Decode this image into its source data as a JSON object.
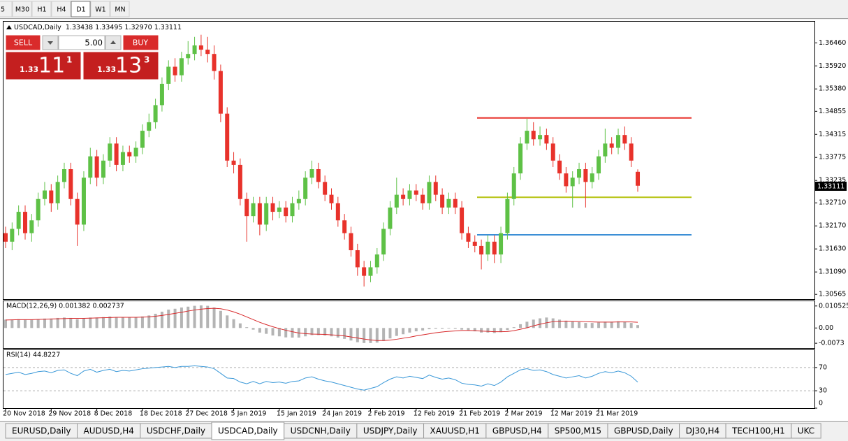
{
  "toolbar": {
    "timeframes": [
      "5",
      "M30",
      "H1",
      "H4",
      "D1",
      "W1",
      "MN"
    ],
    "active": "D1"
  },
  "trade_panel": {
    "sell": "SELL",
    "buy": "BUY",
    "lots": "5.00",
    "bid": {
      "big": "1.33",
      "pips": "11",
      "point": "1"
    },
    "ask": {
      "big": "1.33",
      "pips": "13",
      "point": "3"
    }
  },
  "tabs": {
    "items": [
      "EURUSD,Daily",
      "AUDUSD,H4",
      "USDCHF,Daily",
      "USDCAD,Daily",
      "USDCNH,Daily",
      "USDJPY,Daily",
      "XAUUSD,H1",
      "GBPUSD,H4",
      "SP500,M15",
      "GBPUSD,Daily",
      "DJ30,H4",
      "TECH100,H1",
      "UKC"
    ],
    "active": "USDCAD,Daily"
  },
  "chart_data": [
    {
      "type": "candlestick",
      "title": "USDCAD,Daily",
      "quote": "1.33438 1.33495 1.32970 1.33111",
      "up_color": "#5ec146",
      "down_color": "#e8322b",
      "categories": [
        "20 Nov 2018",
        null,
        null,
        null,
        null,
        null,
        null,
        "29 Nov 2018",
        null,
        null,
        null,
        null,
        null,
        null,
        "8 Dec 2018",
        null,
        null,
        null,
        null,
        null,
        null,
        "18 Dec 2018",
        null,
        null,
        null,
        null,
        null,
        null,
        "27 Dec 2018",
        null,
        null,
        null,
        null,
        null,
        null,
        "5 Jan 2019",
        null,
        null,
        null,
        null,
        null,
        null,
        "15 Jan 2019",
        null,
        null,
        null,
        null,
        null,
        null,
        "24 Jan 2019",
        null,
        null,
        null,
        null,
        null,
        null,
        "2 Feb 2019",
        null,
        null,
        null,
        null,
        null,
        null,
        "12 Feb 2019",
        null,
        null,
        null,
        null,
        null,
        null,
        "21 Feb 2019",
        null,
        null,
        null,
        null,
        null,
        null,
        "2 Mar 2019",
        null,
        null,
        null,
        null,
        null,
        null,
        "12 Mar 2019",
        null,
        null,
        null,
        null,
        null,
        null,
        "21 Mar 2019",
        null,
        null,
        null,
        null,
        null,
        null
      ],
      "open": [
        1.32,
        1.318,
        1.321,
        1.325,
        1.32,
        1.323,
        1.328,
        1.33,
        1.327,
        1.332,
        1.335,
        1.328,
        1.322,
        1.333,
        1.338,
        1.333,
        1.337,
        1.341,
        1.336,
        1.339,
        1.338,
        1.34,
        1.344,
        1.346,
        1.35,
        1.355,
        1.359,
        1.357,
        1.361,
        1.362,
        1.364,
        1.363,
        1.362,
        1.358,
        1.348,
        1.337,
        1.336,
        1.328,
        1.324,
        1.327,
        1.322,
        1.327,
        1.325,
        1.326,
        1.324,
        1.327,
        1.328,
        1.333,
        1.335,
        1.332,
        1.329,
        1.327,
        1.323,
        1.32,
        1.316,
        1.312,
        1.31,
        1.312,
        1.315,
        1.321,
        1.326,
        1.329,
        1.328,
        1.33,
        1.329,
        1.327,
        1.332,
        1.329,
        1.326,
        1.328,
        1.326,
        1.32,
        1.318,
        1.317,
        1.315,
        1.318,
        1.315,
        1.32,
        1.328,
        1.334,
        1.341,
        1.344,
        1.342,
        1.343,
        1.341,
        1.337,
        1.334,
        1.331,
        1.333,
        1.335,
        1.332,
        1.334,
        1.338,
        1.341,
        1.34,
        1.343,
        1.341,
        1.33438
      ],
      "high": [
        1.3215,
        1.3225,
        1.3265,
        1.3265,
        1.3245,
        1.3295,
        1.332,
        1.3315,
        1.3335,
        1.3365,
        1.3365,
        1.3295,
        1.3345,
        1.34,
        1.3395,
        1.3385,
        1.3425,
        1.3425,
        1.3405,
        1.3405,
        1.3415,
        1.3455,
        1.348,
        1.3515,
        1.3565,
        1.3605,
        1.361,
        1.3625,
        1.365,
        1.366,
        1.3665,
        1.366,
        1.364,
        1.3595,
        1.3495,
        1.339,
        1.3375,
        1.3295,
        1.3285,
        1.3285,
        1.3285,
        1.3285,
        1.3275,
        1.3275,
        1.3285,
        1.33,
        1.3345,
        1.337,
        1.3365,
        1.3335,
        1.3305,
        1.3285,
        1.3245,
        1.3215,
        1.3175,
        1.3135,
        1.3135,
        1.3165,
        1.3225,
        1.3275,
        1.333,
        1.3305,
        1.3315,
        1.3315,
        1.3305,
        1.3335,
        1.3335,
        1.3305,
        1.3295,
        1.3295,
        1.3275,
        1.3215,
        1.3195,
        1.3185,
        1.3195,
        1.3195,
        1.3215,
        1.3295,
        1.3355,
        1.3425,
        1.3468,
        1.346,
        1.345,
        1.3445,
        1.3425,
        1.3385,
        1.3355,
        1.3345,
        1.3365,
        1.3365,
        1.3355,
        1.3395,
        1.3445,
        1.3425,
        1.3445,
        1.345,
        1.3425,
        1.33495
      ],
      "low": [
        1.3165,
        1.316,
        1.3195,
        1.3185,
        1.318,
        1.3215,
        1.3265,
        1.325,
        1.3255,
        1.3305,
        1.3265,
        1.317,
        1.3205,
        1.3315,
        1.331,
        1.3315,
        1.3355,
        1.3345,
        1.3345,
        1.3365,
        1.3365,
        1.3385,
        1.3425,
        1.3445,
        1.3485,
        1.3535,
        1.3555,
        1.3555,
        1.3595,
        1.3605,
        1.3615,
        1.36,
        1.356,
        1.346,
        1.3355,
        1.334,
        1.3265,
        1.318,
        1.3225,
        1.3195,
        1.3205,
        1.323,
        1.3235,
        1.3225,
        1.3225,
        1.3255,
        1.3265,
        1.3315,
        1.3305,
        1.3275,
        1.3255,
        1.3215,
        1.3185,
        1.3145,
        1.31,
        1.3075,
        1.3085,
        1.3105,
        1.3135,
        1.3195,
        1.3245,
        1.3265,
        1.3265,
        1.3275,
        1.3255,
        1.3255,
        1.3275,
        1.3245,
        1.3245,
        1.3245,
        1.3185,
        1.3165,
        1.3155,
        1.3115,
        1.3135,
        1.313,
        1.313,
        1.3185,
        1.3265,
        1.3325,
        1.3395,
        1.3405,
        1.3405,
        1.3395,
        1.3355,
        1.3325,
        1.3295,
        1.326,
        1.3315,
        1.326,
        1.3305,
        1.3325,
        1.3365,
        1.3385,
        1.3385,
        1.3395,
        1.3355,
        1.3297
      ],
      "close": [
        1.318,
        1.321,
        1.325,
        1.32,
        1.323,
        1.328,
        1.33,
        1.327,
        1.332,
        1.335,
        1.328,
        1.322,
        1.333,
        1.338,
        1.333,
        1.337,
        1.341,
        1.336,
        1.339,
        1.338,
        1.34,
        1.344,
        1.346,
        1.35,
        1.355,
        1.359,
        1.357,
        1.361,
        1.362,
        1.364,
        1.363,
        1.362,
        1.358,
        1.348,
        1.337,
        1.336,
        1.328,
        1.324,
        1.327,
        1.322,
        1.327,
        1.325,
        1.326,
        1.324,
        1.327,
        1.328,
        1.333,
        1.335,
        1.332,
        1.329,
        1.327,
        1.323,
        1.32,
        1.316,
        1.312,
        1.31,
        1.312,
        1.315,
        1.321,
        1.326,
        1.329,
        1.328,
        1.33,
        1.329,
        1.327,
        1.332,
        1.329,
        1.326,
        1.328,
        1.326,
        1.32,
        1.318,
        1.317,
        1.315,
        1.318,
        1.315,
        1.32,
        1.328,
        1.334,
        1.341,
        1.344,
        1.342,
        1.343,
        1.341,
        1.337,
        1.334,
        1.331,
        1.333,
        1.335,
        1.332,
        1.334,
        1.338,
        1.341,
        1.34,
        1.343,
        1.341,
        1.337,
        1.33111
      ],
      "ylim": [
        1.3047,
        1.3694
      ],
      "yticks": [
        {
          "value": 1.3646,
          "label": "1.36460"
        },
        {
          "value": 1.3592,
          "label": "1.35920"
        },
        {
          "value": 1.3538,
          "label": "1.35380"
        },
        {
          "value": 1.34855,
          "label": "1.34855"
        },
        {
          "value": 1.34315,
          "label": "1.34315"
        },
        {
          "value": 1.33775,
          "label": "1.33775"
        },
        {
          "value": 1.33235,
          "label": "1.33235"
        },
        {
          "value": 1.3271,
          "label": "1.32710"
        },
        {
          "value": 1.3217,
          "label": "1.32170"
        },
        {
          "value": 1.3163,
          "label": "1.31630"
        },
        {
          "value": 1.3109,
          "label": "1.31090"
        },
        {
          "value": 1.30565,
          "label": "1.30565"
        }
      ],
      "levels": [
        {
          "value": 1.347,
          "color": "#e8322b"
        },
        {
          "value": 1.3284,
          "color": "#b5c20f"
        },
        {
          "value": 1.3196,
          "color": "#3c8fd6"
        }
      ]
    },
    {
      "type": "macd",
      "title": "MACD(12,26,9) 0.001382 0.002737",
      "ylim": [
        -0.0096,
        0.0128
      ],
      "yticks": [
        0.010525,
        {
          "value": 0,
          "label": "0.00"
        },
        -0.0073
      ],
      "series": [
        {
          "kind": "bar",
          "color": "#b4b4b4",
          "values": [
            0.004,
            0.004,
            0.0042,
            0.004,
            0.004,
            0.0042,
            0.0045,
            0.0045,
            0.0048,
            0.005,
            0.0048,
            0.0042,
            0.0045,
            0.005,
            0.005,
            0.0052,
            0.0055,
            0.0052,
            0.0052,
            0.005,
            0.005,
            0.0055,
            0.006,
            0.0068,
            0.0078,
            0.0088,
            0.0092,
            0.0098,
            0.0102,
            0.0106,
            0.0108,
            0.0106,
            0.0098,
            0.0082,
            0.006,
            0.0042,
            0.0022,
            0.0004,
            -0.0008,
            -0.0022,
            -0.0028,
            -0.0036,
            -0.004,
            -0.0045,
            -0.0046,
            -0.0046,
            -0.004,
            -0.0034,
            -0.0034,
            -0.0036,
            -0.004,
            -0.0046,
            -0.0052,
            -0.006,
            -0.0068,
            -0.0072,
            -0.0072,
            -0.007,
            -0.0062,
            -0.005,
            -0.0038,
            -0.003,
            -0.0022,
            -0.0016,
            -0.0012,
            -0.0006,
            -0.0004,
            -0.0004,
            -0.0003,
            -0.0004,
            -0.0008,
            -0.0012,
            -0.0016,
            -0.0022,
            -0.0022,
            -0.0024,
            -0.002,
            -0.001,
            0.0004,
            0.0018,
            0.003,
            0.004,
            0.0046,
            0.005,
            0.0046,
            0.004,
            0.0034,
            0.003,
            0.0028,
            0.0024,
            0.0024,
            0.0026,
            0.003,
            0.003,
            0.0032,
            0.003,
            0.0024,
            0.001382
          ]
        },
        {
          "kind": "line",
          "color": "#d8282a",
          "values": [
            0.0038,
            0.0039,
            0.004,
            0.004,
            0.004,
            0.0041,
            0.0042,
            0.0043,
            0.0044,
            0.0045,
            0.0046,
            0.0046,
            0.0046,
            0.0047,
            0.0048,
            0.0049,
            0.005,
            0.0051,
            0.0051,
            0.0051,
            0.0051,
            0.0052,
            0.0053,
            0.0056,
            0.006,
            0.0065,
            0.007,
            0.0075,
            0.0081,
            0.0086,
            0.009,
            0.0093,
            0.0094,
            0.0092,
            0.0086,
            0.0077,
            0.0066,
            0.0053,
            0.004,
            0.0027,
            0.0016,
            0.0006,
            -0.0003,
            -0.0011,
            -0.0018,
            -0.0024,
            -0.0027,
            -0.0029,
            -0.003,
            -0.0031,
            -0.0033,
            -0.0035,
            -0.0038,
            -0.0043,
            -0.0048,
            -0.0053,
            -0.0057,
            -0.006,
            -0.006,
            -0.0058,
            -0.0054,
            -0.0049,
            -0.0044,
            -0.0038,
            -0.0033,
            -0.0028,
            -0.0023,
            -0.0019,
            -0.0016,
            -0.0014,
            -0.0012,
            -0.0012,
            -0.0013,
            -0.0015,
            -0.0016,
            -0.0018,
            -0.0018,
            -0.0017,
            -0.0013,
            -0.0006,
            0.0001,
            0.001,
            0.0018,
            0.0025,
            0.003,
            0.0032,
            0.0033,
            0.0032,
            0.0031,
            0.003,
            0.0029,
            0.0028,
            0.0028,
            0.0028,
            0.0029,
            0.0029,
            0.0029,
            0.002737
          ]
        }
      ]
    },
    {
      "type": "line",
      "title": "RSI(14) 44.8227",
      "color": "#3a98d8",
      "ylim": [
        0,
        100
      ],
      "yticks": [
        70,
        30,
        0
      ],
      "grid": true,
      "values": [
        58,
        60,
        62,
        58,
        60,
        63,
        64,
        61,
        65,
        66,
        60,
        56,
        64,
        67,
        62,
        65,
        67,
        63,
        65,
        64,
        66,
        68,
        69,
        70,
        71,
        72,
        70,
        72,
        72,
        73,
        72,
        71,
        68,
        60,
        52,
        51,
        45,
        42,
        46,
        42,
        46,
        44,
        45,
        43,
        46,
        47,
        52,
        54,
        50,
        47,
        45,
        42,
        39,
        36,
        33,
        31,
        34,
        37,
        44,
        50,
        54,
        52,
        55,
        53,
        51,
        57,
        53,
        50,
        52,
        49,
        43,
        41,
        40,
        38,
        42,
        39,
        45,
        54,
        60,
        66,
        68,
        65,
        66,
        63,
        58,
        55,
        52,
        54,
        56,
        52,
        55,
        60,
        63,
        61,
        64,
        61,
        55,
        44.8227
      ]
    }
  ]
}
